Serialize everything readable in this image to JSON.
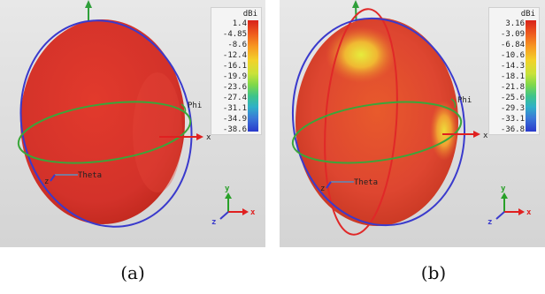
{
  "panels": [
    {
      "caption": "(a)",
      "colorbar": {
        "unit": "dBi",
        "ticks": [
          "1.4",
          "-4.85",
          "-8.6",
          "-12.4",
          "-16.1",
          "-19.9",
          "-23.6",
          "-27.4",
          "-31.1",
          "-34.9",
          "-38.6"
        ]
      },
      "axis_labels": {
        "x": "x",
        "phi": "Phi",
        "theta": "Theta",
        "z": "z"
      },
      "triad": {
        "x": "x",
        "y": "y",
        "z": "z"
      }
    },
    {
      "caption": "(b)",
      "colorbar": {
        "unit": "dBi",
        "ticks": [
          "3.16",
          "-3.09",
          "-6.84",
          "-10.6",
          "-14.3",
          "-18.1",
          "-21.8",
          "-25.6",
          "-29.3",
          "-33.1",
          "-36.8"
        ]
      },
      "axis_labels": {
        "x": "x",
        "phi": "Phi",
        "theta": "Theta",
        "z": "z"
      },
      "triad": {
        "x": "x",
        "y": "y",
        "z": "z"
      }
    }
  ],
  "colors": {
    "pattern_red": "#d8352a",
    "pattern_orange": "#e56a2a",
    "pattern_yellow": "#e0e83a",
    "phi_ring": "#39a83a",
    "theta_ring": "#3a3acc",
    "axis_red": "#e02020",
    "axis_green": "#28a028"
  }
}
